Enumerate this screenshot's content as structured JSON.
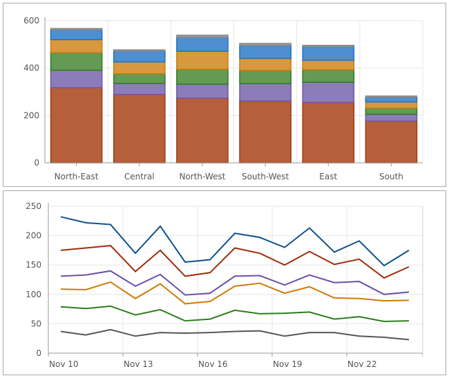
{
  "chart_data": [
    {
      "type": "bar",
      "stacked": true,
      "categories": [
        "North-East",
        "Central",
        "North-West",
        "South-West",
        "East",
        "South"
      ],
      "ylim": [
        0,
        600
      ],
      "yticks": [
        0,
        200,
        400,
        600
      ],
      "grid": true,
      "series": [
        {
          "values": [
            317,
            289,
            273,
            261,
            255,
            176
          ],
          "fill": "#b5603a",
          "stroke": "#a23a12"
        },
        {
          "values": [
            74,
            46,
            59,
            73,
            85,
            29
          ],
          "fill": "#8c7dba",
          "stroke": "#6e56a8"
        },
        {
          "values": [
            74,
            41,
            63,
            56,
            53,
            26
          ],
          "fill": "#659a54",
          "stroke": "#2e7a1e"
        },
        {
          "values": [
            55,
            50,
            76,
            51,
            40,
            26
          ],
          "fill": "#d8983e",
          "stroke": "#d07a0a"
        },
        {
          "values": [
            42,
            46,
            59,
            55,
            58,
            20
          ],
          "fill": "#4d8fd0",
          "stroke": "#1e70c8"
        },
        {
          "values": [
            5,
            5,
            9,
            8,
            5,
            5
          ],
          "fill": "#9a9a9a",
          "stroke": "#8a8a8a"
        }
      ]
    },
    {
      "type": "line",
      "x": [
        "Nov 10",
        "Nov 11",
        "Nov 12",
        "Nov 13",
        "Nov 14",
        "Nov 15",
        "Nov 16",
        "Nov 17",
        "Nov 18",
        "Nov 19",
        "Nov 20",
        "Nov 21",
        "Nov 22",
        "Nov 23",
        "Nov 24"
      ],
      "xtick_labels": [
        "Nov 10",
        "Nov 13",
        "Nov 16",
        "Nov 19",
        "Nov 22"
      ],
      "ylim": [
        0,
        250
      ],
      "yticks": [
        0,
        50,
        100,
        150,
        200,
        250
      ],
      "grid": true,
      "series": [
        {
          "color": "#0b4f8f",
          "values": [
            232,
            222,
            219,
            170,
            216,
            155,
            159,
            204,
            197,
            180,
            213,
            172,
            191,
            149,
            175
          ]
        },
        {
          "color": "#a02c0a",
          "values": [
            175,
            179,
            183,
            139,
            175,
            131,
            137,
            179,
            170,
            150,
            173,
            151,
            160,
            128,
            147
          ]
        },
        {
          "color": "#6b4fa8",
          "values": [
            131,
            133,
            140,
            114,
            134,
            99,
            102,
            131,
            132,
            116,
            133,
            120,
            122,
            100,
            104
          ]
        },
        {
          "color": "#d07a0a",
          "values": [
            109,
            108,
            121,
            93,
            118,
            84,
            88,
            114,
            119,
            102,
            113,
            94,
            93,
            89,
            90
          ]
        },
        {
          "color": "#2a7d1a",
          "values": [
            79,
            76,
            80,
            65,
            74,
            55,
            58,
            73,
            67,
            68,
            70,
            58,
            62,
            54,
            55
          ]
        },
        {
          "color": "#555555",
          "values": [
            37,
            31,
            40,
            29,
            35,
            34,
            35,
            37,
            38,
            29,
            35,
            35,
            29,
            27,
            23
          ]
        }
      ]
    }
  ]
}
